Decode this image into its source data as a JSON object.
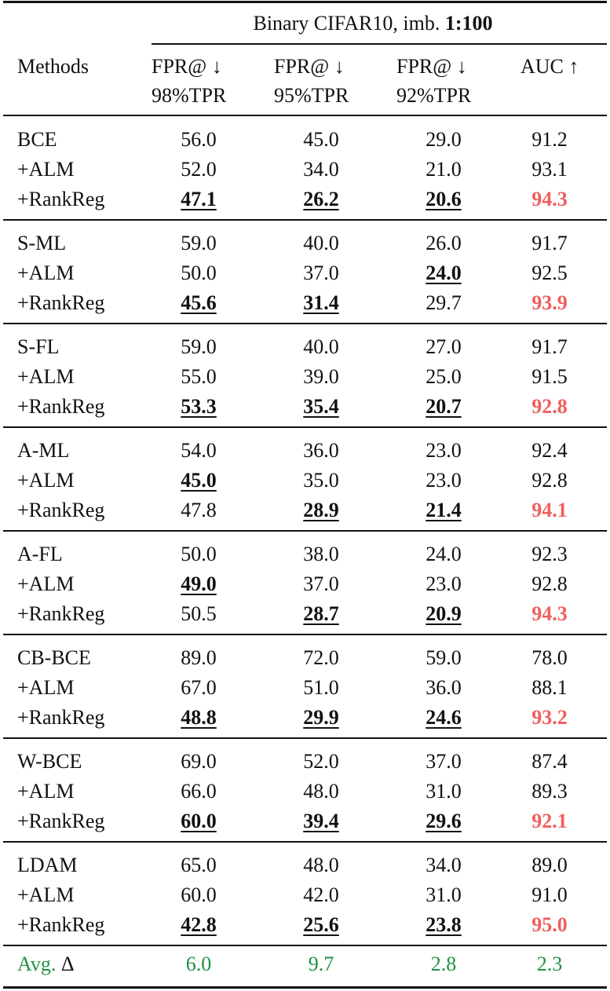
{
  "header": {
    "dataset_prefix": "Binary CIFAR10, imb. ",
    "dataset_ratio": "1:100",
    "methods_label": "Methods",
    "columns": [
      {
        "line1": "FPR@ ↓",
        "line2": "98%TPR"
      },
      {
        "line1": "FPR@ ↓",
        "line2": "95%TPR"
      },
      {
        "line1": "FPR@ ↓",
        "line2": "92%TPR"
      },
      {
        "line1": "AUC ↑",
        "line2": ""
      }
    ]
  },
  "colors": {
    "highlight_auc": "#ef5f5f",
    "avg_delta": "#1e9345"
  },
  "groups": [
    {
      "rows": [
        {
          "method": "BCE",
          "values": [
            "56.0",
            "45.0",
            "29.0",
            "91.2"
          ],
          "best": [
            false,
            false,
            false,
            false
          ]
        },
        {
          "method": "+ALM",
          "values": [
            "52.0",
            "34.0",
            "21.0",
            "93.1"
          ],
          "best": [
            false,
            false,
            false,
            false
          ]
        },
        {
          "method": "+RankReg",
          "values": [
            "47.1",
            "26.2",
            "20.6",
            "94.3"
          ],
          "best": [
            true,
            true,
            true,
            true
          ]
        }
      ]
    },
    {
      "rows": [
        {
          "method": "S-ML",
          "values": [
            "59.0",
            "40.0",
            "26.0",
            "91.7"
          ],
          "best": [
            false,
            false,
            false,
            false
          ]
        },
        {
          "method": "+ALM",
          "values": [
            "50.0",
            "37.0",
            "24.0",
            "92.5"
          ],
          "best": [
            false,
            false,
            true,
            false
          ]
        },
        {
          "method": "+RankReg",
          "values": [
            "45.6",
            "31.4",
            "29.7",
            "93.9"
          ],
          "best": [
            true,
            true,
            false,
            true
          ]
        }
      ]
    },
    {
      "rows": [
        {
          "method": "S-FL",
          "values": [
            "59.0",
            "40.0",
            "27.0",
            "91.7"
          ],
          "best": [
            false,
            false,
            false,
            false
          ]
        },
        {
          "method": "+ALM",
          "values": [
            "55.0",
            "39.0",
            "25.0",
            "91.5"
          ],
          "best": [
            false,
            false,
            false,
            false
          ]
        },
        {
          "method": "+RankReg",
          "values": [
            "53.3",
            "35.4",
            "20.7",
            "92.8"
          ],
          "best": [
            true,
            true,
            true,
            true
          ]
        }
      ]
    },
    {
      "rows": [
        {
          "method": "A-ML",
          "values": [
            "54.0",
            "36.0",
            "23.0",
            "92.4"
          ],
          "best": [
            false,
            false,
            false,
            false
          ]
        },
        {
          "method": "+ALM",
          "values": [
            "45.0",
            "35.0",
            "23.0",
            "92.8"
          ],
          "best": [
            true,
            false,
            false,
            false
          ]
        },
        {
          "method": "+RankReg",
          "values": [
            "47.8",
            "28.9",
            "21.4",
            "94.1"
          ],
          "best": [
            false,
            true,
            true,
            true
          ]
        }
      ]
    },
    {
      "rows": [
        {
          "method": "A-FL",
          "values": [
            "50.0",
            "38.0",
            "24.0",
            "92.3"
          ],
          "best": [
            false,
            false,
            false,
            false
          ]
        },
        {
          "method": "+ALM",
          "values": [
            "49.0",
            "37.0",
            "23.0",
            "92.8"
          ],
          "best": [
            true,
            false,
            false,
            false
          ]
        },
        {
          "method": "+RankReg",
          "values": [
            "50.5",
            "28.7",
            "20.9",
            "94.3"
          ],
          "best": [
            false,
            true,
            true,
            true
          ]
        }
      ]
    },
    {
      "rows": [
        {
          "method": "CB-BCE",
          "values": [
            "89.0",
            "72.0",
            "59.0",
            "78.0"
          ],
          "best": [
            false,
            false,
            false,
            false
          ]
        },
        {
          "method": "+ALM",
          "values": [
            "67.0",
            "51.0",
            "36.0",
            "88.1"
          ],
          "best": [
            false,
            false,
            false,
            false
          ]
        },
        {
          "method": "+RankReg",
          "values": [
            "48.8",
            "29.9",
            "24.6",
            "93.2"
          ],
          "best": [
            true,
            true,
            true,
            true
          ]
        }
      ]
    },
    {
      "rows": [
        {
          "method": "W-BCE",
          "values": [
            "69.0",
            "52.0",
            "37.0",
            "87.4"
          ],
          "best": [
            false,
            false,
            false,
            false
          ]
        },
        {
          "method": "+ALM",
          "values": [
            "66.0",
            "48.0",
            "31.0",
            "89.3"
          ],
          "best": [
            false,
            false,
            false,
            false
          ]
        },
        {
          "method": "+RankReg",
          "values": [
            "60.0",
            "39.4",
            "29.6",
            "92.1"
          ],
          "best": [
            true,
            true,
            true,
            true
          ]
        }
      ]
    },
    {
      "rows": [
        {
          "method": "LDAM",
          "values": [
            "65.0",
            "48.0",
            "34.0",
            "89.0"
          ],
          "best": [
            false,
            false,
            false,
            false
          ]
        },
        {
          "method": "+ALM",
          "values": [
            "60.0",
            "42.0",
            "31.0",
            "91.0"
          ],
          "best": [
            false,
            false,
            false,
            false
          ]
        },
        {
          "method": "+RankReg",
          "values": [
            "42.8",
            "25.6",
            "23.8",
            "95.0"
          ],
          "best": [
            true,
            true,
            true,
            true
          ]
        }
      ]
    }
  ],
  "avg": {
    "label": "Avg. ",
    "delta_symbol": "Δ",
    "values": [
      "6.0",
      "9.7",
      "2.8",
      "2.3"
    ]
  }
}
